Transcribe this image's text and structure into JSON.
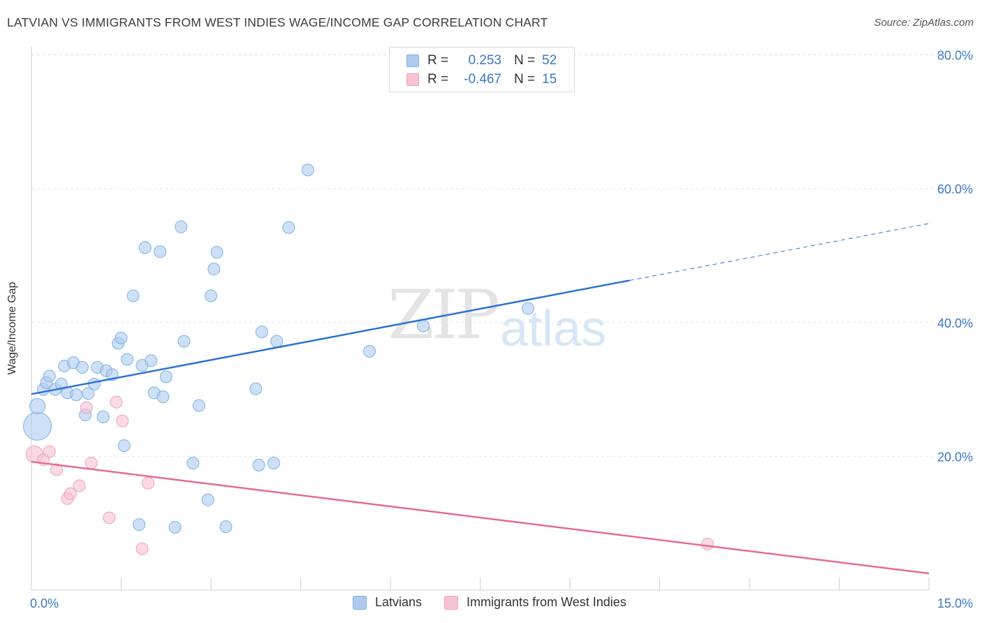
{
  "header": {
    "title": "LATVIAN VS IMMIGRANTS FROM WEST INDIES WAGE/INCOME GAP CORRELATION CHART",
    "source": "Source: ZipAtlas.com"
  },
  "watermark": {
    "zip": "ZIP",
    "atlas": "atlas"
  },
  "legend_top": {
    "rows": [
      {
        "r_label": "R =",
        "r_value": "0.253",
        "n_label": "N =",
        "n_value": "52",
        "color": "#aecbef"
      },
      {
        "r_label": "R =",
        "r_value": "-0.467",
        "n_label": "N =",
        "n_value": "15",
        "color": "#f7c2d2"
      }
    ]
  },
  "legend_bottom": {
    "items": [
      {
        "label": "Latvians",
        "color": "#aecbef"
      },
      {
        "label": "Immigrants from West Indies",
        "color": "#f7c2d2"
      }
    ]
  },
  "chart_data": {
    "type": "scatter",
    "title": "LATVIAN VS IMMIGRANTS FROM WEST INDIES WAGE/INCOME GAP CORRELATION CHART",
    "xlabel": "",
    "ylabel": "Wage/Income Gap",
    "xlim": [
      0,
      15
    ],
    "ylim": [
      0,
      80
    ],
    "x_tick_labels": [
      "0.0%",
      "15.0%"
    ],
    "y_ticks": [
      20,
      40,
      60,
      80
    ],
    "y_tick_labels": [
      "20.0%",
      "40.0%",
      "60.0%",
      "80.0%"
    ],
    "grid": true,
    "legend_position": "top-center",
    "series": [
      {
        "name": "Latvians",
        "color": "#7fb0e6",
        "fill": "#aecbef",
        "line_color": "#2c72d2",
        "trend": {
          "x": [
            0,
            10
          ],
          "y": [
            29.3,
            46.3
          ],
          "dashed_to": [
            15,
            54.8
          ]
        },
        "points": [
          [
            0.1,
            24.5
          ],
          [
            0.1,
            27.5
          ],
          [
            0.2,
            30
          ],
          [
            0.25,
            31
          ],
          [
            0.3,
            32
          ],
          [
            0.4,
            30
          ],
          [
            0.5,
            30.8
          ],
          [
            0.55,
            33.5
          ],
          [
            0.6,
            29.5
          ],
          [
            0.7,
            34
          ],
          [
            0.75,
            29.2
          ],
          [
            0.85,
            33.3
          ],
          [
            0.9,
            26.2
          ],
          [
            0.95,
            29.4
          ],
          [
            1.05,
            30.8
          ],
          [
            1.1,
            33.3
          ],
          [
            1.2,
            25.9
          ],
          [
            1.25,
            32.8
          ],
          [
            1.35,
            32.2
          ],
          [
            1.45,
            36.9
          ],
          [
            1.5,
            37.7
          ],
          [
            1.55,
            21.6
          ],
          [
            1.6,
            34.5
          ],
          [
            1.7,
            44
          ],
          [
            1.8,
            9.8
          ],
          [
            1.85,
            33.6
          ],
          [
            1.9,
            51.2
          ],
          [
            2.0,
            34.3
          ],
          [
            2.05,
            29.5
          ],
          [
            2.15,
            50.6
          ],
          [
            2.2,
            28.9
          ],
          [
            2.25,
            31.9
          ],
          [
            2.4,
            9.4
          ],
          [
            2.5,
            54.3
          ],
          [
            2.55,
            37.2
          ],
          [
            2.7,
            19
          ],
          [
            2.8,
            27.6
          ],
          [
            2.95,
            13.5
          ],
          [
            3.0,
            44
          ],
          [
            3.05,
            48
          ],
          [
            3.1,
            50.5
          ],
          [
            3.25,
            9.5
          ],
          [
            3.75,
            30.1
          ],
          [
            3.8,
            18.7
          ],
          [
            3.85,
            38.6
          ],
          [
            4.05,
            19
          ],
          [
            4.1,
            37.2
          ],
          [
            4.3,
            54.2
          ],
          [
            4.62,
            62.8
          ],
          [
            5.65,
            35.7
          ],
          [
            6.55,
            39.5
          ],
          [
            8.3,
            42.1
          ]
        ]
      },
      {
        "name": "Immigrants from West Indies",
        "color": "#f0a0b8",
        "fill": "#f7c2d2",
        "line_color": "#e36b97",
        "trend": {
          "x": [
            0,
            15
          ],
          "y": [
            19.2,
            2.5
          ]
        },
        "points": [
          [
            0.05,
            20.3
          ],
          [
            0.2,
            19.5
          ],
          [
            0.3,
            20.7
          ],
          [
            0.42,
            18
          ],
          [
            0.6,
            13.7
          ],
          [
            0.65,
            14.4
          ],
          [
            0.8,
            15.6
          ],
          [
            0.92,
            27.3
          ],
          [
            1.0,
            19
          ],
          [
            1.3,
            10.8
          ],
          [
            1.42,
            28.1
          ],
          [
            1.52,
            25.3
          ],
          [
            1.85,
            6.2
          ],
          [
            1.95,
            16
          ],
          [
            11.3,
            6.9
          ]
        ]
      }
    ]
  }
}
